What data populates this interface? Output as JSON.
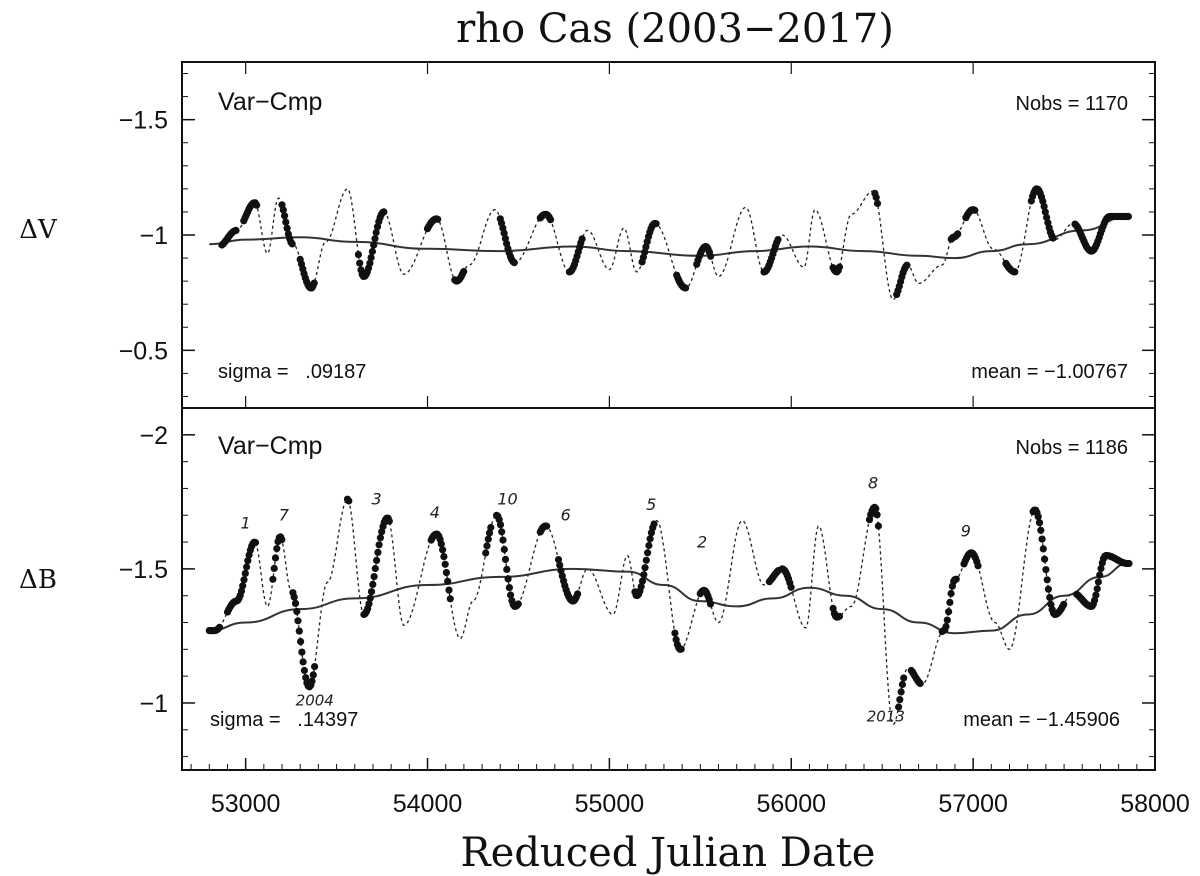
{
  "chart_data": {
    "type": "line",
    "title": "rho Cas (2003−2017)",
    "xlabel": "Reduced Julian Date",
    "xlim": [
      52650,
      58000
    ],
    "xticks": [
      53000,
      54000,
      55000,
      56000,
      57000,
      58000
    ],
    "xtick_labels": [
      "53000",
      "54000",
      "55000",
      "56000",
      "57000",
      "58000"
    ],
    "panels": [
      {
        "id": "V",
        "ylabel": "ΔV",
        "label": "Var−Cmp",
        "nobs_text": "Nobs =  1170",
        "sigma_text": "sigma =   .09187",
        "mean_text": "mean = −1.00767",
        "ylim": [
          -0.25,
          -1.75
        ],
        "yticks": [
          -1.5,
          -1,
          -0.5
        ],
        "ytick_labels": [
          "−1.5",
          "−1",
          "−0.5"
        ],
        "trend": {
          "x": [
            52800,
            53000,
            53300,
            53600,
            54000,
            54400,
            54800,
            55100,
            55500,
            55800,
            56100,
            56400,
            56700,
            56900,
            57100,
            57300,
            57600,
            57850
          ],
          "y": [
            -0.96,
            -0.98,
            -0.99,
            -0.97,
            -0.94,
            -0.93,
            -0.95,
            -0.93,
            -0.91,
            -0.93,
            -0.95,
            -0.93,
            -0.91,
            -0.9,
            -0.93,
            -0.96,
            -1.02,
            -1.08
          ]
        },
        "curve": {
          "x": [
            52850,
            52950,
            53050,
            53120,
            53180,
            53260,
            53360,
            53440,
            53560,
            53650,
            53760,
            53870,
            54050,
            54160,
            54230,
            54370,
            54480,
            54650,
            54780,
            54880,
            55000,
            55080,
            55150,
            55250,
            55420,
            55530,
            55600,
            55750,
            55850,
            55950,
            56070,
            56130,
            56250,
            56330,
            56450,
            56560,
            56640,
            56700,
            56830,
            56890,
            57000,
            57110,
            57230,
            57350,
            57450,
            57550,
            57650,
            57750,
            57850
          ],
          "y": [
            -0.95,
            -1.02,
            -1.14,
            -0.92,
            -1.16,
            -0.96,
            -0.77,
            -0.97,
            -1.2,
            -0.82,
            -1.1,
            -0.83,
            -1.07,
            -0.8,
            -0.87,
            -1.11,
            -0.88,
            -1.09,
            -0.84,
            -1.02,
            -0.85,
            -1.03,
            -0.84,
            -1.05,
            -0.77,
            -0.95,
            -0.82,
            -1.12,
            -0.84,
            -1.0,
            -0.86,
            -1.11,
            -0.84,
            -1.09,
            -1.19,
            -0.72,
            -0.87,
            -0.79,
            -0.87,
            -0.99,
            -1.11,
            -0.94,
            -0.84,
            -1.2,
            -0.98,
            -1.05,
            -0.93,
            -1.08,
            -1.08
          ]
        },
        "observed_segments": [
          [
            52870,
            52950
          ],
          [
            52990,
            53060
          ],
          [
            53200,
            53260
          ],
          [
            53300,
            53380
          ],
          [
            53620,
            53760
          ],
          [
            54000,
            54060
          ],
          [
            54150,
            54200
          ],
          [
            54400,
            54480
          ],
          [
            54620,
            54680
          ],
          [
            54780,
            54850
          ],
          [
            55180,
            55260
          ],
          [
            55370,
            55420
          ],
          [
            55480,
            55560
          ],
          [
            55850,
            55930
          ],
          [
            56230,
            56270
          ],
          [
            56460,
            56480
          ],
          [
            56580,
            56640
          ],
          [
            56880,
            56920
          ],
          [
            56960,
            57010
          ],
          [
            57180,
            57230
          ],
          [
            57320,
            57440
          ],
          [
            57560,
            57860
          ]
        ]
      },
      {
        "id": "B",
        "ylabel": "ΔB",
        "label": "Var−Cmp",
        "nobs_text": "Nobs =  1186",
        "sigma_text": "sigma =   .14397",
        "mean_text": "mean = −1.45906",
        "ylim": [
          -0.75,
          -2.1
        ],
        "yticks": [
          -2,
          -1.5,
          -1
        ],
        "ytick_labels": [
          "−2",
          "−1.5",
          "−1"
        ],
        "trend": {
          "x": [
            52800,
            53000,
            53300,
            53600,
            54000,
            54400,
            54800,
            55100,
            55300,
            55500,
            55700,
            55900,
            56100,
            56300,
            56500,
            56700,
            56900,
            57100,
            57300,
            57500,
            57700,
            57850
          ],
          "y": [
            -1.27,
            -1.3,
            -1.35,
            -1.39,
            -1.44,
            -1.47,
            -1.5,
            -1.49,
            -1.44,
            -1.38,
            -1.36,
            -1.39,
            -1.43,
            -1.4,
            -1.35,
            -1.3,
            -1.26,
            -1.27,
            -1.33,
            -1.4,
            -1.47,
            -1.52
          ]
        },
        "curve": {
          "x": [
            52830,
            52950,
            53050,
            53120,
            53190,
            53250,
            53350,
            53450,
            53560,
            53650,
            53780,
            53870,
            54050,
            54180,
            54250,
            54380,
            54480,
            54650,
            54800,
            54880,
            55020,
            55100,
            55150,
            55260,
            55390,
            55520,
            55600,
            55730,
            55850,
            55950,
            56080,
            56150,
            56250,
            56330,
            56460,
            56560,
            56640,
            56720,
            56840,
            56900,
            56990,
            57120,
            57200,
            57340,
            57450,
            57550,
            57650,
            57730,
            57850
          ],
          "y": [
            -1.27,
            -1.38,
            -1.6,
            -1.36,
            -1.62,
            -1.42,
            -1.06,
            -1.45,
            -1.76,
            -1.33,
            -1.69,
            -1.29,
            -1.63,
            -1.24,
            -1.38,
            -1.7,
            -1.36,
            -1.66,
            -1.38,
            -1.5,
            -1.33,
            -1.55,
            -1.4,
            -1.68,
            -1.2,
            -1.42,
            -1.3,
            -1.68,
            -1.44,
            -1.5,
            -1.28,
            -1.66,
            -1.32,
            -1.36,
            -1.73,
            -0.92,
            -1.13,
            -1.07,
            -1.27,
            -1.46,
            -1.56,
            -1.3,
            -1.2,
            -1.72,
            -1.33,
            -1.41,
            -1.36,
            -1.55,
            -1.52
          ]
        },
        "observed_segments": [
          [
            52800,
            52860
          ],
          [
            52900,
            53060
          ],
          [
            53150,
            53200
          ],
          [
            53260,
            53380
          ],
          [
            53560,
            53570
          ],
          [
            53650,
            53790
          ],
          [
            54020,
            54130
          ],
          [
            54320,
            54350
          ],
          [
            54380,
            54500
          ],
          [
            54620,
            54660
          ],
          [
            54720,
            54830
          ],
          [
            55140,
            55250
          ],
          [
            55360,
            55400
          ],
          [
            55500,
            55560
          ],
          [
            55880,
            55930
          ],
          [
            55950,
            56000
          ],
          [
            56230,
            56270
          ],
          [
            56430,
            56480
          ],
          [
            56590,
            56620
          ],
          [
            56660,
            56710
          ],
          [
            56830,
            56910
          ],
          [
            56950,
            57030
          ],
          [
            57330,
            57500
          ],
          [
            57570,
            57860
          ]
        ],
        "annotations": [
          {
            "text": "1",
            "x": 53000,
            "y": -1.65
          },
          {
            "text": "7",
            "x": 53210,
            "y": -1.68
          },
          {
            "text": "2004",
            "x": 53380,
            "y": -0.99
          },
          {
            "text": "3",
            "x": 53720,
            "y": -1.74
          },
          {
            "text": "4",
            "x": 54040,
            "y": -1.69
          },
          {
            "text": "10",
            "x": 54440,
            "y": -1.74
          },
          {
            "text": "6",
            "x": 54760,
            "y": -1.68
          },
          {
            "text": "5",
            "x": 55230,
            "y": -1.72
          },
          {
            "text": "2",
            "x": 55510,
            "y": -1.58
          },
          {
            "text": "8",
            "x": 56450,
            "y": -1.8
          },
          {
            "text": "2013",
            "x": 56520,
            "y": -0.93
          },
          {
            "text": "9",
            "x": 56960,
            "y": -1.62
          }
        ]
      }
    ]
  }
}
